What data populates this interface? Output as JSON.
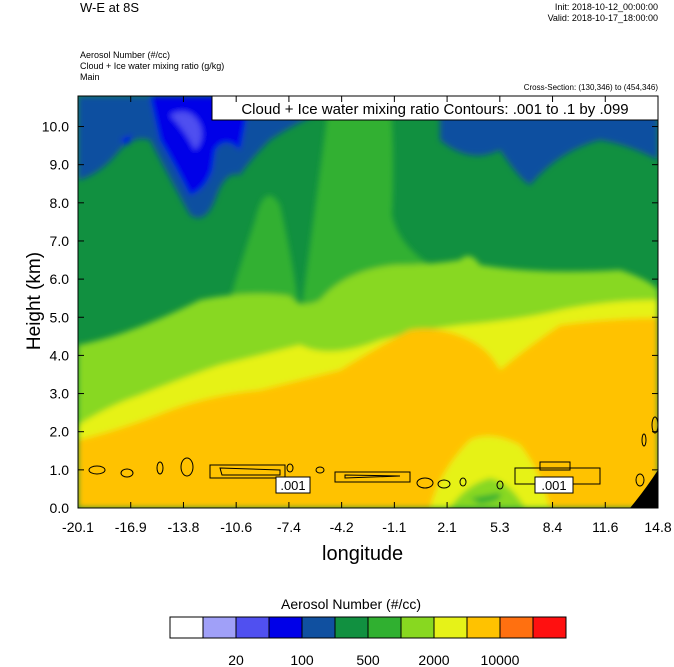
{
  "header": {
    "title": "W-E at 8S",
    "init": "Init: 2018-10-12_00:00:00",
    "valid": "Valid: 2018-10-17_18:00:00",
    "field1": "Aerosol Number   (#/cc)",
    "field2": "Cloud + Ice water mixing ratio   (g/kg)",
    "field3": "Main",
    "cross_section": "Cross-Section: (130,346) to (454,346)"
  },
  "chart_data": {
    "type": "heatmap",
    "title": "W-E at 8S",
    "xlabel": "longitude",
    "ylabel": "Height (km)",
    "x_ticks": [
      "-20.1",
      "-16.9",
      "-13.8",
      "-10.6",
      "-7.4",
      "-4.2",
      "-1.1",
      "2.1",
      "5.3",
      "8.4",
      "11.6",
      "14.8"
    ],
    "y_ticks": [
      "0.0",
      "1.0",
      "2.0",
      "3.0",
      "4.0",
      "5.0",
      "6.0",
      "7.0",
      "8.0",
      "9.0",
      "10.0"
    ],
    "xlim": [
      -20.1,
      14.8
    ],
    "ylim": [
      0,
      10.8
    ],
    "contour_label": "Cloud + Ice water mixing ratio Contours: .001 to .1 by .099",
    "contour_values": [
      ".001",
      ".001"
    ],
    "colorbar": {
      "title": "Aerosol Number  (#/cc)",
      "colors": [
        "#ffffff",
        "#a0a0f8",
        "#5050f0",
        "#0000e8",
        "#1050a0",
        "#119040",
        "#30b030",
        "#88d820",
        "#e6f218",
        "#ffc200",
        "#ff7010",
        "#ff1010"
      ],
      "tick_labels": [
        "20",
        "100",
        "500",
        "2000",
        "10000"
      ]
    }
  }
}
